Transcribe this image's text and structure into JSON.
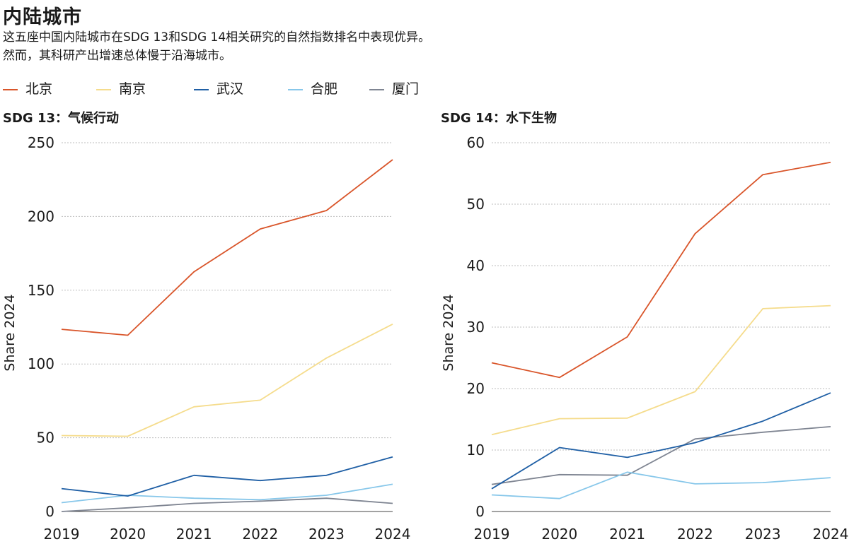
{
  "header": {
    "title": "内陆城市",
    "subtitle_line1": "这五座中国内陆城市在SDG 13和SDG 14相关研究的自然指数排名中表现优异。",
    "subtitle_line2": "然而，其科研产出增速总体慢于沿海城市。"
  },
  "chart_data": [
    {
      "type": "line",
      "title": "SDG 13：气候行动",
      "ylabel": "Share 2024",
      "xlabel": "",
      "x": [
        2019,
        2020,
        2021,
        2022,
        2023,
        2024
      ],
      "ylim": [
        0,
        250
      ],
      "yticks": [
        0,
        50,
        100,
        150,
        200,
        250
      ],
      "grid": true,
      "legend": "top",
      "series": [
        {
          "name": "北京",
          "color": "#d9552a",
          "values": [
            123.5,
            119.5,
            162.5,
            191.5,
            204,
            238.5
          ]
        },
        {
          "name": "南京",
          "color": "#f5dc8c",
          "values": [
            51.5,
            51,
            71,
            75.5,
            104,
            127
          ]
        },
        {
          "name": "武汉",
          "color": "#1f5fa5",
          "values": [
            15.5,
            10.5,
            24.5,
            21,
            24.5,
            37
          ]
        },
        {
          "name": "合肥",
          "color": "#87c7ea",
          "values": [
            6,
            11,
            9,
            8,
            11,
            18.5
          ]
        },
        {
          "name": "厦门",
          "color": "#7f8592",
          "values": [
            0,
            2.5,
            5.5,
            7,
            9,
            5.5
          ]
        }
      ]
    },
    {
      "type": "line",
      "title": "SDG 14：水下生物",
      "ylabel": "Share 2024",
      "xlabel": "",
      "x": [
        2019,
        2020,
        2021,
        2022,
        2023,
        2024
      ],
      "ylim": [
        0,
        60
      ],
      "yticks": [
        0,
        10,
        20,
        30,
        40,
        50,
        60
      ],
      "grid": true,
      "legend": "top",
      "series": [
        {
          "name": "北京",
          "color": "#d9552a",
          "values": [
            24.2,
            21.8,
            28.4,
            45.2,
            54.8,
            56.8
          ]
        },
        {
          "name": "南京",
          "color": "#f5dc8c",
          "values": [
            12.5,
            15.1,
            15.2,
            19.5,
            33,
            33.5
          ]
        },
        {
          "name": "武汉",
          "color": "#1f5fa5",
          "values": [
            3.7,
            10.4,
            8.8,
            11.2,
            14.7,
            19.3
          ]
        },
        {
          "name": "合肥",
          "color": "#87c7ea",
          "values": [
            2.7,
            2.1,
            6.4,
            4.5,
            4.7,
            5.5
          ]
        },
        {
          "name": "厦门",
          "color": "#7f8592",
          "values": [
            4.4,
            6,
            5.9,
            11.8,
            12.9,
            13.8
          ]
        }
      ]
    }
  ]
}
